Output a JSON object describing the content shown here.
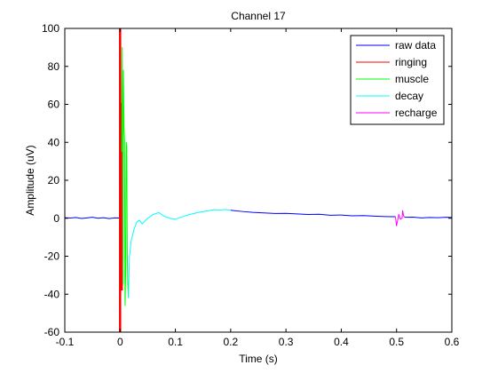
{
  "chart_data": {
    "type": "line",
    "title": "Channel 17",
    "xlabel": "Time (s)",
    "ylabel": "Amplitude (uV)",
    "xlim": [
      -0.1,
      0.6
    ],
    "ylim": [
      -60,
      100
    ],
    "xticks": [
      -0.1,
      0,
      0.1,
      0.2,
      0.3,
      0.4,
      0.5,
      0.6
    ],
    "xtick_labels": [
      "-0.1",
      "0",
      "0.1",
      "0.2",
      "0.3",
      "0.4",
      "0.5",
      "0.6"
    ],
    "yticks": [
      -60,
      -40,
      -20,
      0,
      20,
      40,
      60,
      80,
      100
    ],
    "ytick_labels": [
      "-60",
      "-40",
      "-20",
      "0",
      "20",
      "40",
      "60",
      "80",
      "100"
    ],
    "grid": false,
    "legend_position": "top-right",
    "series": [
      {
        "name": "raw data",
        "color": "#0000ff",
        "segments": [
          {
            "x": [
              -0.1,
              -0.09,
              -0.08,
              -0.07,
              -0.06,
              -0.05,
              -0.04,
              -0.03,
              -0.02,
              -0.01,
              -0.002
            ],
            "y": [
              0.3,
              0.1,
              0.4,
              -0.1,
              0.2,
              0.5,
              0.0,
              0.3,
              -0.2,
              0.2,
              0.1
            ]
          },
          {
            "x": [
              0.2,
              0.22,
              0.24,
              0.26,
              0.28,
              0.3,
              0.32,
              0.34,
              0.36,
              0.38,
              0.4,
              0.42,
              0.44,
              0.46,
              0.48,
              0.498
            ],
            "y": [
              4.2,
              3.6,
              3.1,
              2.8,
              2.5,
              2.6,
              2.3,
              2.0,
              2.1,
              1.6,
              1.7,
              1.3,
              1.4,
              1.1,
              0.9,
              0.8
            ]
          },
          {
            "x": [
              0.515,
              0.53,
              0.545,
              0.56,
              0.575,
              0.59,
              0.6
            ],
            "y": [
              0.5,
              0.6,
              0.2,
              0.4,
              0.3,
              0.5,
              0.4
            ]
          }
        ]
      },
      {
        "name": "ringing",
        "color": "#ff0000",
        "segments": [
          {
            "x": [
              0.0,
              0.0,
              0.001,
              0.002,
              0.003
            ],
            "y": [
              -60,
              100,
              -30,
              60,
              -38
            ]
          }
        ]
      },
      {
        "name": "muscle",
        "color": "#00ff00",
        "segments": [
          {
            "x": [
              0.003,
              0.004,
              0.005,
              0.006,
              0.007,
              0.008,
              0.009,
              0.01,
              0.011,
              0.012,
              0.013,
              0.014,
              0.015
            ],
            "y": [
              35,
              90,
              -35,
              78,
              48,
              42,
              -46,
              -30,
              40,
              38,
              -20,
              -35,
              -42
            ]
          }
        ]
      },
      {
        "name": "decay",
        "color": "#00ffff",
        "segments": [
          {
            "x": [
              0.015,
              0.017,
              0.02,
              0.025,
              0.03,
              0.035,
              0.04,
              0.05,
              0.06,
              0.07,
              0.08,
              0.09,
              0.1,
              0.11,
              0.12,
              0.14,
              0.16,
              0.17,
              0.18,
              0.19,
              0.2
            ],
            "y": [
              -42,
              -20,
              -12,
              -6,
              -2,
              -1,
              -3,
              0,
              2,
              3,
              1,
              0,
              -0.5,
              0.5,
              1.5,
              3,
              4,
              4.5,
              4.3,
              4.6,
              4.2
            ]
          }
        ]
      },
      {
        "name": "recharge",
        "color": "#ff00ff",
        "segments": [
          {
            "x": [
              0.498,
              0.5,
              0.502,
              0.504,
              0.507,
              0.51,
              0.511,
              0.513,
              0.515
            ],
            "y": [
              0.8,
              -4,
              -1,
              2,
              -0.5,
              0,
              4,
              1,
              0.5
            ]
          }
        ]
      }
    ]
  }
}
